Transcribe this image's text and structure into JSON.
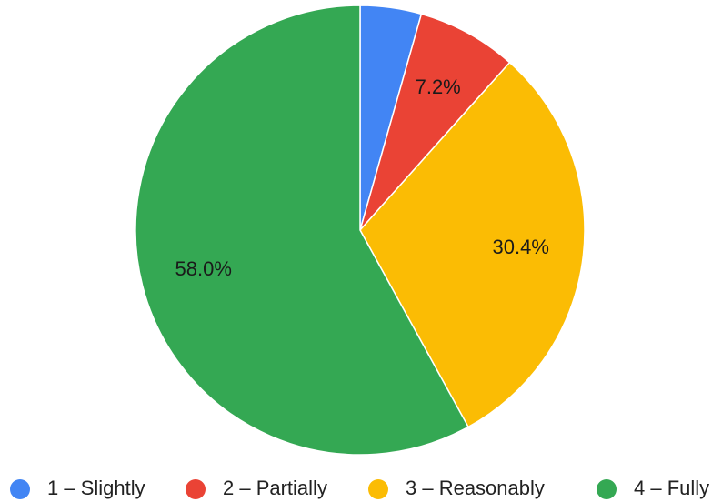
{
  "chart_data": {
    "type": "pie",
    "slices": [
      {
        "label": "1 – Slightly",
        "value": 4.4,
        "color": "#4285F4",
        "data_label": ""
      },
      {
        "label": "2 – Partially",
        "value": 7.2,
        "color": "#EA4335",
        "data_label": "7.2%"
      },
      {
        "label": "3 – Reasonably",
        "value": 30.4,
        "color": "#FBBC04",
        "data_label": "30.4%"
      },
      {
        "label": "4 – Fully",
        "value": 58.0,
        "color": "#34A853",
        "data_label": "58.0%"
      }
    ],
    "start": "top",
    "direction": "clockwise",
    "legend_position": "bottom",
    "title": ""
  }
}
